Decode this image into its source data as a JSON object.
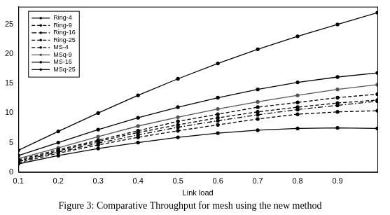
{
  "chart_data": {
    "type": "line",
    "title": "Figure 3: Comparative Throughput for mesh using the new method",
    "x_label": "Link load",
    "x": [
      0.1,
      0.2,
      0.3,
      0.4,
      0.5,
      0.6,
      0.7,
      0.8,
      0.9,
      1.0
    ],
    "xlim": [
      0.1,
      1.0
    ],
    "xticks": [
      0.1,
      0.2,
      0.3,
      0.4,
      0.5,
      0.6,
      0.7,
      0.8,
      0.9
    ],
    "ylim": [
      0,
      28
    ],
    "yticks": [
      0,
      5,
      10,
      15,
      20,
      25
    ],
    "grid": false,
    "legend": "upper left",
    "series": [
      {
        "name": "Ring-4",
        "color": "#000000",
        "marker": "circle",
        "line_style": "solid",
        "values": [
          1.4,
          2.8,
          4.0,
          5.0,
          5.9,
          6.6,
          7.1,
          7.4,
          7.5,
          7.4
        ]
      },
      {
        "name": "Ring-9",
        "color": "#000000",
        "marker": "circle",
        "line_style": "dashed",
        "values": [
          1.6,
          3.2,
          4.6,
          5.9,
          7.0,
          8.0,
          9.0,
          9.8,
          10.2,
          10.4
        ]
      },
      {
        "name": "Ring-16",
        "color": "#000000",
        "marker": "circle",
        "line_style": "dashdot",
        "values": [
          1.8,
          3.4,
          4.9,
          6.3,
          7.6,
          8.7,
          9.7,
          10.6,
          11.3,
          12.0
        ]
      },
      {
        "name": "Ring-25",
        "color": "#000000",
        "marker": "circle",
        "line_style": "dashed",
        "values": [
          2.1,
          3.8,
          5.4,
          7.0,
          8.6,
          9.8,
          11.0,
          11.8,
          12.6,
          13.2
        ]
      },
      {
        "name": "MS-4",
        "color": "#000000",
        "marker": "circle",
        "line_style": "dashed",
        "values": [
          1.9,
          3.6,
          5.2,
          6.7,
          8.0,
          9.2,
          10.2,
          11.0,
          11.7,
          12.2
        ]
      },
      {
        "name": "MSq-9",
        "color": "#555555",
        "marker": "circle",
        "line_style": "solid",
        "values": [
          2.3,
          4.1,
          6.0,
          7.8,
          9.3,
          10.7,
          11.9,
          13.0,
          14.0,
          14.8
        ]
      },
      {
        "name": "MS-16",
        "color": "#000000",
        "marker": "circle",
        "line_style": "solid",
        "values": [
          2.8,
          5.0,
          7.2,
          9.2,
          11.0,
          12.6,
          14.0,
          15.2,
          16.1,
          16.8
        ]
      },
      {
        "name": "MSq-25",
        "color": "#000000",
        "marker": "circle",
        "line_style": "solid",
        "values": [
          3.7,
          6.9,
          10.0,
          13.0,
          15.8,
          18.4,
          20.8,
          23.0,
          25.0,
          27.0
        ]
      }
    ]
  }
}
